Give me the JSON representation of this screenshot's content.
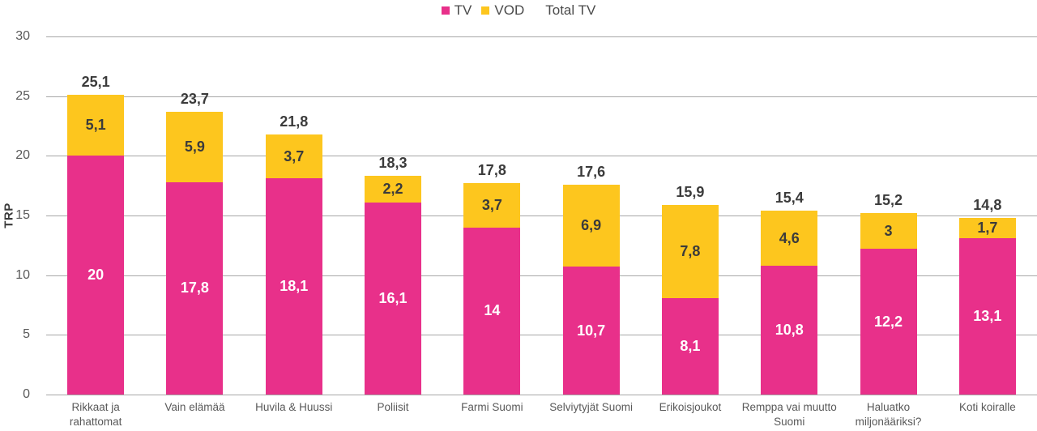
{
  "colors": {
    "tv": "#e8308a",
    "vod": "#fdc61e",
    "gridline": "#a6a6a6",
    "axis_text": "#595959",
    "label_dark": "#3b3b3b",
    "tv_label_text": "#ffffff"
  },
  "legend": {
    "tv": "TV",
    "vod": "VOD",
    "total_tv": "Total TV"
  },
  "y_axis": {
    "title": "TRP"
  },
  "chart_data": {
    "type": "bar",
    "stacked": true,
    "title": "",
    "xlabel": "",
    "ylabel": "TRP",
    "ylim": [
      0,
      30
    ],
    "yticks": [
      0,
      5,
      10,
      15,
      20,
      25,
      30
    ],
    "grid": "horizontal",
    "legend_position": "top-center",
    "legend_entries": [
      "TV",
      "VOD",
      "Total TV"
    ],
    "categories": [
      "Rikkaat ja rahattomat",
      "Vain elämää",
      "Huvila & Huussi",
      "Poliisit",
      "Farmi Suomi",
      "Selviytyjät Suomi",
      "Erikoisjoukot",
      "Remppa vai muutto Suomi",
      "Haluatko miljonääriksi?",
      "Koti koiralle"
    ],
    "category_lines": [
      [
        "Rikkaat ja",
        "rahattomat"
      ],
      [
        "Vain elämää"
      ],
      [
        "Huvila & Huussi"
      ],
      [
        "Poliisit"
      ],
      [
        "Farmi Suomi"
      ],
      [
        "Selviytyjät Suomi"
      ],
      [
        "Erikoisjoukot"
      ],
      [
        "Remppa vai muutto",
        "Suomi"
      ],
      [
        "Haluatko",
        "miljonääriksi?"
      ],
      [
        "Koti koiralle"
      ]
    ],
    "series": [
      {
        "name": "TV",
        "color_key": "tv",
        "values": [
          20,
          17.8,
          18.1,
          16.1,
          14,
          10.7,
          8.1,
          10.8,
          12.2,
          13.1
        ],
        "labels": [
          "20",
          "17,8",
          "18,1",
          "16,1",
          "14",
          "10,7",
          "8,1",
          "10,8",
          "12,2",
          "13,1"
        ]
      },
      {
        "name": "VOD",
        "color_key": "vod",
        "values": [
          5.1,
          5.9,
          3.7,
          2.2,
          3.7,
          6.9,
          7.8,
          4.6,
          3,
          1.7
        ],
        "labels": [
          "5,1",
          "5,9",
          "3,7",
          "2,2",
          "3,7",
          "6,9",
          "7,8",
          "4,6",
          "3",
          "1,7"
        ]
      }
    ],
    "totals": {
      "name": "Total TV",
      "values": [
        25.1,
        23.7,
        21.8,
        18.3,
        17.8,
        17.6,
        15.9,
        15.4,
        15.2,
        14.8
      ],
      "labels": [
        "25,1",
        "23,7",
        "21,8",
        "18,3",
        "17,8",
        "17,6",
        "15,9",
        "15,4",
        "15,2",
        "14,8"
      ]
    }
  }
}
